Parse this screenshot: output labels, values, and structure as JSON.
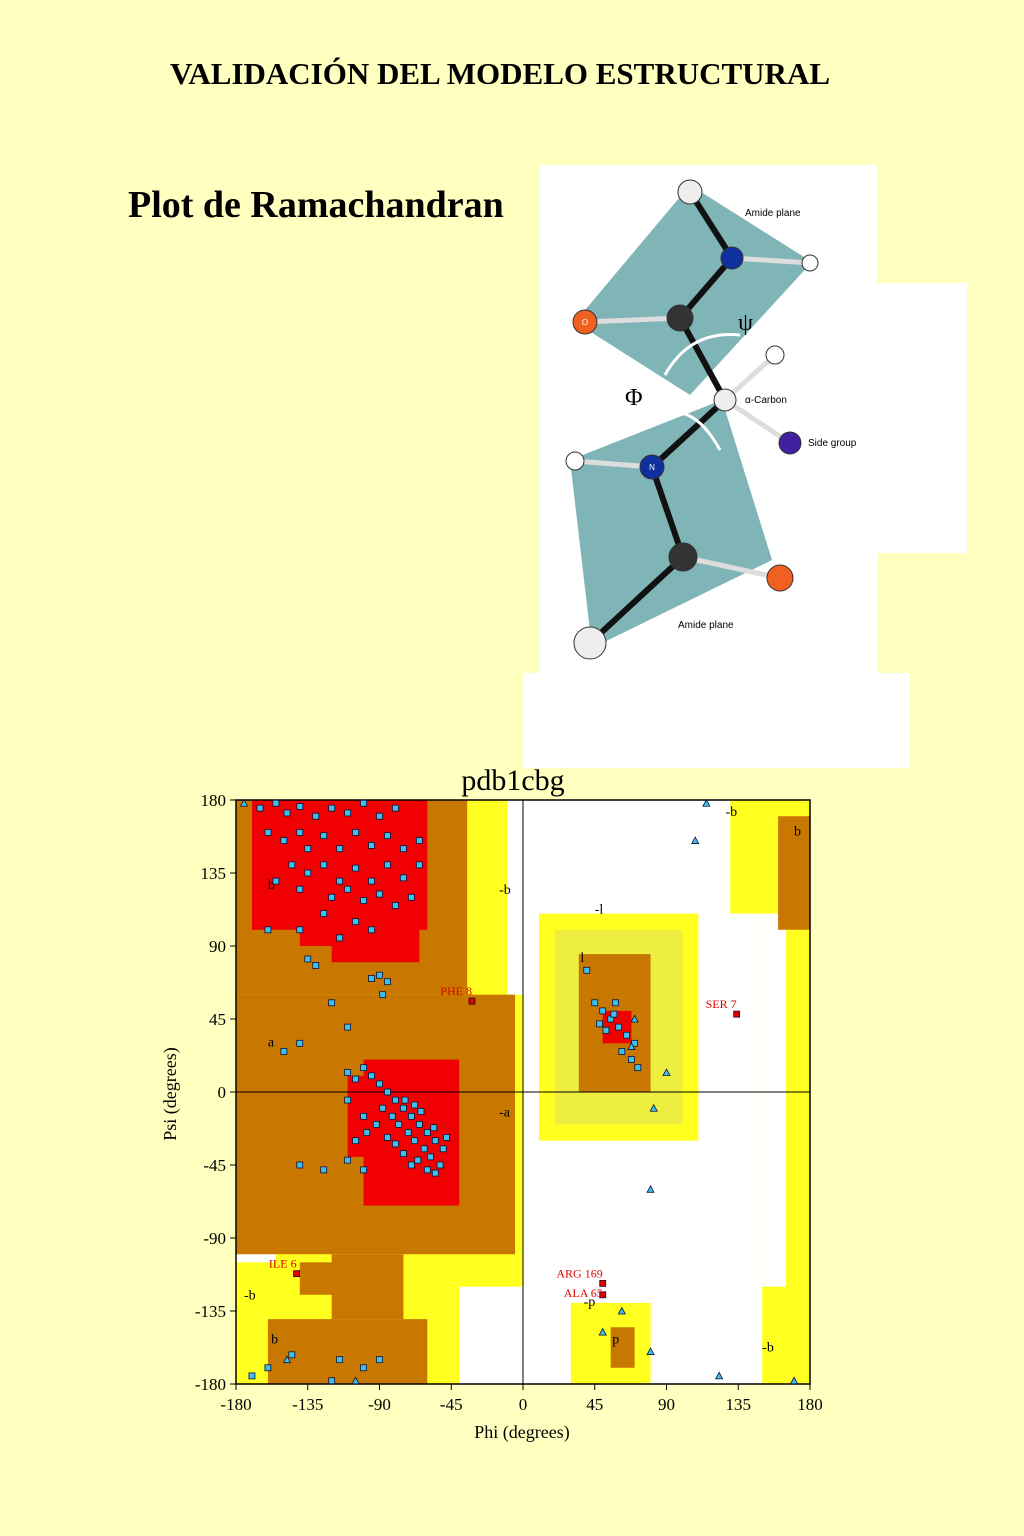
{
  "header": {
    "title": "VALIDACIÓN DEL MODELO ESTRUCTURAL",
    "subtitle": "Plot de Ramachandran"
  },
  "diagram": {
    "top_plane": "Amide plane",
    "psi": "ψ",
    "phi": "Φ",
    "alpha_carbon": "α-Carbon",
    "side_group": "Side group",
    "bottom_plane": "Amide plane",
    "oxygen": "O",
    "nitrogen": "N"
  },
  "chart_data": {
    "type": "scatter",
    "title": "pdb1cbg",
    "x_label": "Phi (degrees)",
    "y_label": "Psi (degrees)",
    "xlim": [
      -180,
      180
    ],
    "ylim": [
      -180,
      180
    ],
    "xticks": [
      -180,
      -135,
      -90,
      -45,
      0,
      45,
      90,
      135,
      180
    ],
    "yticks": [
      -180,
      -135,
      -90,
      -45,
      0,
      45,
      90,
      135,
      180
    ],
    "region_labels": [
      {
        "text": "b",
        "x": -160,
        "y": 125
      },
      {
        "text": "a",
        "x": -160,
        "y": 28
      },
      {
        "text": "-b",
        "x": -15,
        "y": 122
      },
      {
        "text": "-a",
        "x": -15,
        "y": -15
      },
      {
        "text": "-l",
        "x": 45,
        "y": 110
      },
      {
        "text": "l",
        "x": 36,
        "y": 80
      },
      {
        "text": "-b",
        "x": 127,
        "y": 170
      },
      {
        "text": "b",
        "x": 170,
        "y": 158
      },
      {
        "text": "-b",
        "x": -175,
        "y": -128
      },
      {
        "text": "b",
        "x": -158,
        "y": -155
      },
      {
        "text": "-p",
        "x": 38,
        "y": -132
      },
      {
        "text": "p",
        "x": 56,
        "y": -155
      },
      {
        "text": "-b",
        "x": 150,
        "y": -160
      }
    ],
    "series": [
      {
        "color": "#3cc0f0",
        "marker": "square",
        "x": [
          -165,
          -155,
          -148,
          -140,
          -130,
          -120,
          -110,
          -100,
          -90,
          -80,
          -160,
          -150,
          -140,
          -135,
          -125,
          -115,
          -105,
          -95,
          -85,
          -75,
          -65,
          -145,
          -135,
          -125,
          -115,
          -105,
          -95,
          -85,
          -75,
          -65,
          -155,
          -140,
          -120,
          -110,
          -100,
          -90,
          -80,
          -70,
          -125,
          -105,
          -95,
          -160,
          -140,
          -115,
          -135,
          -130,
          -90,
          -85,
          -95,
          -88,
          -120,
          -110,
          -140,
          -150,
          -110,
          -105,
          -100,
          -95,
          -90,
          -85,
          -80,
          -75,
          -70,
          -65,
          -60,
          -55,
          -50,
          -72,
          -68,
          -62,
          -58,
          -52,
          -78,
          -82,
          -88,
          -92,
          -98,
          -105,
          -110,
          -100,
          -66,
          -60,
          -55,
          -70,
          -75,
          -80,
          -85,
          -64,
          -56,
          -48,
          -74,
          -68,
          -140,
          -125,
          -100,
          -110,
          45,
          50,
          55,
          60,
          52,
          48,
          58,
          65,
          70,
          68,
          72,
          62,
          57,
          40,
          -170,
          -160,
          -100,
          -90,
          -145,
          -120,
          -115
        ],
        "values": [
          175,
          178,
          172,
          176,
          170,
          175,
          172,
          178,
          170,
          175,
          160,
          155,
          160,
          150,
          158,
          150,
          160,
          152,
          158,
          150,
          155,
          140,
          135,
          140,
          130,
          138,
          130,
          140,
          132,
          140,
          130,
          125,
          120,
          125,
          118,
          122,
          115,
          120,
          110,
          105,
          100,
          100,
          100,
          95,
          82,
          78,
          72,
          68,
          70,
          60,
          55,
          40,
          30,
          25,
          12,
          8,
          15,
          10,
          5,
          0,
          -5,
          -10,
          -15,
          -20,
          -25,
          -30,
          -35,
          -25,
          -30,
          -35,
          -40,
          -45,
          -20,
          -15,
          -10,
          -20,
          -25,
          -30,
          -5,
          -15,
          -42,
          -48,
          -50,
          -45,
          -38,
          -32,
          -28,
          -12,
          -22,
          -28,
          -5,
          -8,
          -45,
          -48,
          -48,
          -42,
          55,
          50,
          45,
          40,
          38,
          42,
          55,
          35,
          30,
          20,
          15,
          25,
          48,
          75,
          -175,
          -170,
          -170,
          -165,
          -162,
          -178,
          -165
        ]
      },
      {
        "color": "#3cc0f0",
        "marker": "triangle",
        "x": [
          -175,
          115,
          108,
          70,
          68,
          90,
          82,
          80,
          62,
          80,
          123,
          170,
          -148,
          -105,
          50
        ],
        "values": [
          178,
          178,
          155,
          45,
          28,
          12,
          -10,
          -60,
          -135,
          -160,
          -175,
          -178,
          -165,
          -178,
          -148
        ]
      },
      {
        "color": "#e00000",
        "marker": "square",
        "labels": [
          "PHE 8",
          "SER 7",
          "ILE 6",
          "ARG 169",
          "ALA 65"
        ],
        "x": [
          -32,
          134,
          -142,
          50,
          50
        ],
        "values": [
          56,
          48,
          -112,
          -118,
          -125
        ]
      }
    ]
  }
}
